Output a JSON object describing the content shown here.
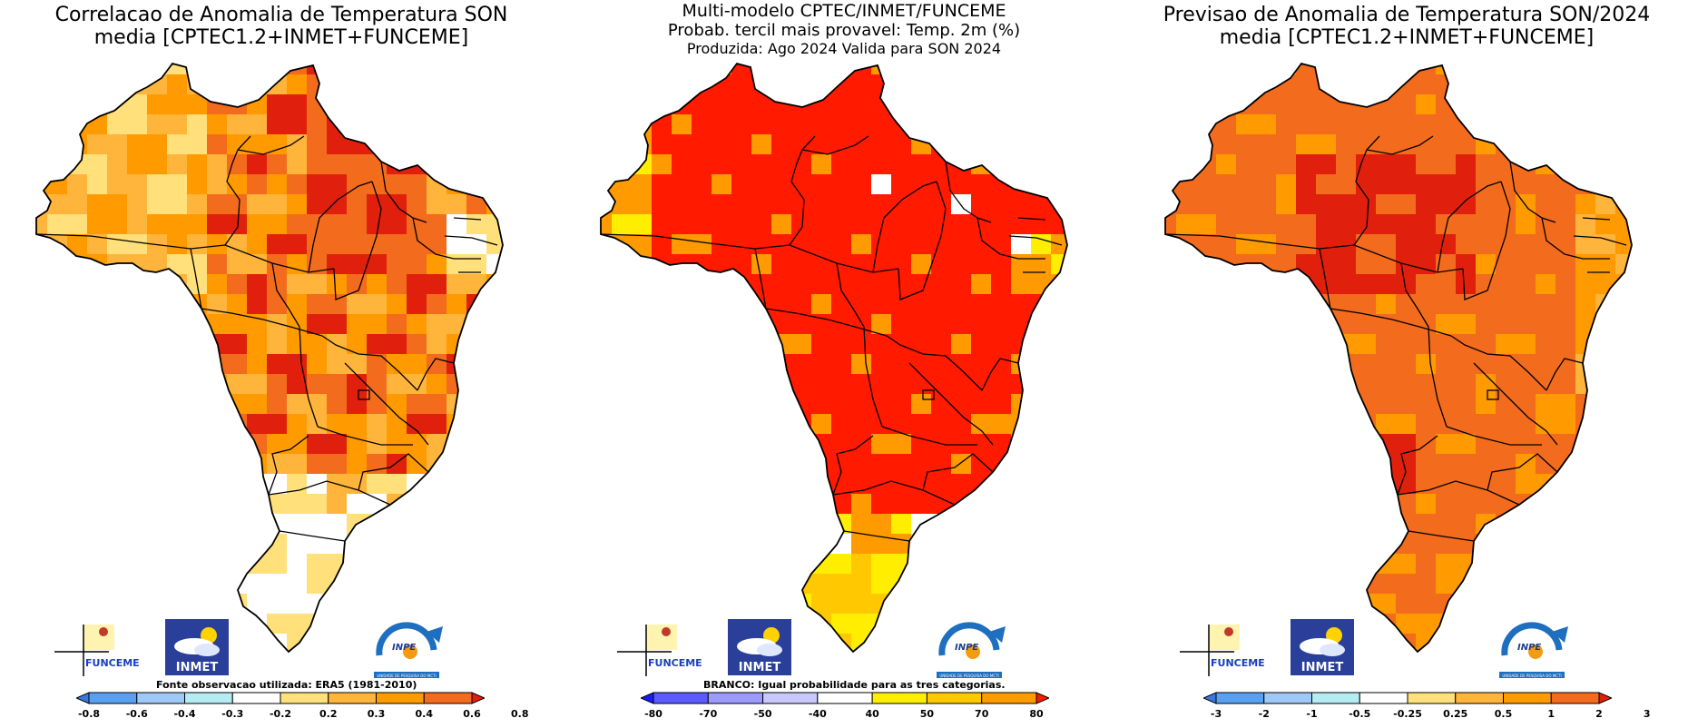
{
  "palettes": {
    "blue3": "#3a78e0",
    "blue2": "#5aa0f0",
    "blue1": "#9ec9f7",
    "cyan": "#b3ecf2",
    "white": "#ffffff",
    "yel1": "#ffe07a",
    "yel2": "#ffb43c",
    "ora": "#ff9a00",
    "ora2": "#f36b1c",
    "red": "#e0200c",
    "red2": "#c01808",
    "bnav": "#1a1aff",
    "bmid": "#5a5aff",
    "bl": "#9a9aff",
    "bll": "#c8c8ff",
    "yel": "#ffee00",
    "yelo": "#ffc800",
    "pr_red": "#ff1a00"
  },
  "panels": [
    {
      "id": "correlation",
      "title_lines": [
        "Correlacao de Anomalia de Temperatura SON",
        "media [CPTEC1.2+INMET+FUNCEME]"
      ],
      "note": "Fonte observacao utilizada: ERA5 (1981-2010)",
      "colorbar": {
        "colors": [
          "#3a78e0",
          "#5aa0f0",
          "#9ec9f7",
          "#b3ecf2",
          "#ffffff",
          "#ffe07a",
          "#ffb43c",
          "#ff9a00",
          "#f36b1c",
          "#e0200c"
        ],
        "ticks": [
          "-0.8",
          "-0.6",
          "-0.4",
          "-0.3",
          "-0.2",
          "0.2",
          "0.3",
          "0.4",
          "0.6",
          "0.8"
        ]
      },
      "map_style": "correlation"
    },
    {
      "id": "probability",
      "title_lines": [
        "Multi-modelo CPTEC/INMET/FUNCEME",
        "Probab. tercil mais provavel: Temp. 2m (%)",
        "Produzida: Ago 2024   Valida para SON 2024"
      ],
      "note": "BRANCO: Igual probabilidade para as tres categorias.",
      "colorbar": {
        "colors": [
          "#1a1aff",
          "#5a5aff",
          "#9a9aff",
          "#c8c8ff",
          "#ffffff",
          "#ffee00",
          "#ffc800",
          "#ff9a00",
          "#ff1a00"
        ],
        "ticks": [
          "-80",
          "-70",
          "-50",
          "-40",
          "40",
          "50",
          "70",
          "80"
        ]
      },
      "map_style": "probability"
    },
    {
      "id": "forecast",
      "title_lines": [
        "Previsao de Anomalia de Temperatura SON/2024",
        "media [CPTEC1.2+INMET+FUNCEME]"
      ],
      "note": "",
      "colorbar": {
        "colors": [
          "#3a78e0",
          "#5aa0f0",
          "#9ec9f7",
          "#b3ecf2",
          "#ffffff",
          "#ffe07a",
          "#ffb43c",
          "#ff9a00",
          "#f36b1c",
          "#e0200c"
        ],
        "ticks": [
          "-3",
          "-2",
          "-1",
          "-0.5",
          "-0.25",
          "0.25",
          "0.5",
          "1",
          "2",
          "3"
        ]
      },
      "map_style": "forecast"
    }
  ],
  "logos": {
    "funceme": "FUNCEME",
    "inmet": "INMET",
    "inpe": "INPE",
    "inpe_sub": "UNIDADE DE PESQUISA DO MCTI"
  }
}
